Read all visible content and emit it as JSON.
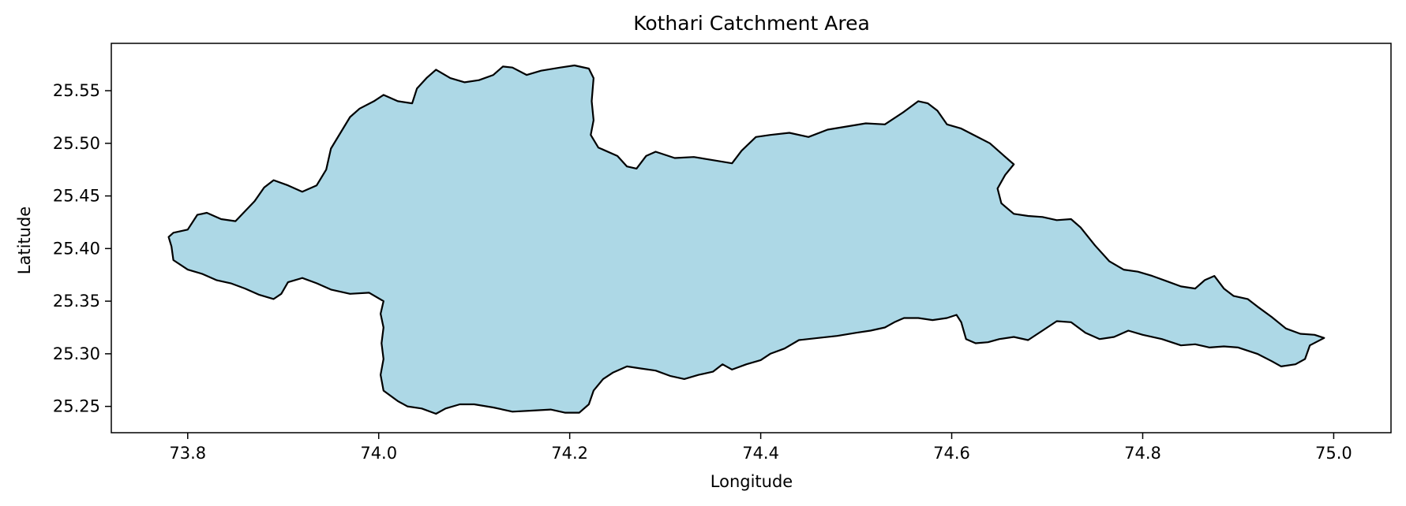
{
  "chart_data": {
    "type": "map",
    "title": "Kothari Catchment Area",
    "xlabel": "Longitude",
    "ylabel": "Latitude",
    "xlim": [
      73.72,
      75.06
    ],
    "ylim": [
      25.225,
      25.595
    ],
    "x_ticks": [
      73.8,
      74.0,
      74.2,
      74.4,
      74.6,
      74.8,
      75.0
    ],
    "x_tick_labels": [
      "73.8",
      "74.0",
      "74.2",
      "74.4",
      "74.6",
      "74.8",
      "75.0"
    ],
    "y_ticks": [
      25.25,
      25.3,
      25.35,
      25.4,
      25.45,
      25.5,
      25.55
    ],
    "y_tick_labels": [
      "25.25",
      "25.30",
      "25.35",
      "25.40",
      "25.45",
      "25.50",
      "25.55"
    ],
    "grid": false,
    "fill_color": "#add8e6",
    "edge_color": "#000000",
    "boundary": [
      [
        73.78,
        25.411
      ],
      [
        73.785,
        25.415
      ],
      [
        73.8,
        25.418
      ],
      [
        73.81,
        25.432
      ],
      [
        73.82,
        25.434
      ],
      [
        73.835,
        25.428
      ],
      [
        73.85,
        25.426
      ],
      [
        73.87,
        25.445
      ],
      [
        73.88,
        25.458
      ],
      [
        73.89,
        25.465
      ],
      [
        73.905,
        25.46
      ],
      [
        73.92,
        25.454
      ],
      [
        73.935,
        25.46
      ],
      [
        73.945,
        25.475
      ],
      [
        73.95,
        25.495
      ],
      [
        73.96,
        25.51
      ],
      [
        73.97,
        25.525
      ],
      [
        73.98,
        25.533
      ],
      [
        73.995,
        25.54
      ],
      [
        74.005,
        25.546
      ],
      [
        74.02,
        25.54
      ],
      [
        74.035,
        25.538
      ],
      [
        74.04,
        25.552
      ],
      [
        74.05,
        25.562
      ],
      [
        74.06,
        25.57
      ],
      [
        74.075,
        25.562
      ],
      [
        74.09,
        25.558
      ],
      [
        74.105,
        25.56
      ],
      [
        74.12,
        25.565
      ],
      [
        74.13,
        25.573
      ],
      [
        74.14,
        25.572
      ],
      [
        74.155,
        25.565
      ],
      [
        74.17,
        25.569
      ],
      [
        74.19,
        25.572
      ],
      [
        74.205,
        25.574
      ],
      [
        74.22,
        25.571
      ],
      [
        74.225,
        25.562
      ],
      [
        74.223,
        25.54
      ],
      [
        74.225,
        25.522
      ],
      [
        74.222,
        25.508
      ],
      [
        74.23,
        25.496
      ],
      [
        74.25,
        25.488
      ],
      [
        74.26,
        25.478
      ],
      [
        74.27,
        25.476
      ],
      [
        74.28,
        25.488
      ],
      [
        74.29,
        25.492
      ],
      [
        74.31,
        25.486
      ],
      [
        74.33,
        25.487
      ],
      [
        74.35,
        25.484
      ],
      [
        74.37,
        25.481
      ],
      [
        74.38,
        25.493
      ],
      [
        74.395,
        25.506
      ],
      [
        74.41,
        25.508
      ],
      [
        74.43,
        25.51
      ],
      [
        74.45,
        25.506
      ],
      [
        74.47,
        25.513
      ],
      [
        74.49,
        25.516
      ],
      [
        74.51,
        25.519
      ],
      [
        74.53,
        25.518
      ],
      [
        74.55,
        25.53
      ],
      [
        74.565,
        25.54
      ],
      [
        74.575,
        25.538
      ],
      [
        74.585,
        25.531
      ],
      [
        74.595,
        25.518
      ],
      [
        74.61,
        25.514
      ],
      [
        74.625,
        25.507
      ],
      [
        74.64,
        25.5
      ],
      [
        74.655,
        25.488
      ],
      [
        74.665,
        25.48
      ],
      [
        74.656,
        25.47
      ],
      [
        74.648,
        25.457
      ],
      [
        74.652,
        25.443
      ],
      [
        74.665,
        25.433
      ],
      [
        74.68,
        25.431
      ],
      [
        74.695,
        25.43
      ],
      [
        74.71,
        25.427
      ],
      [
        74.725,
        25.428
      ],
      [
        74.735,
        25.42
      ],
      [
        74.75,
        25.403
      ],
      [
        74.765,
        25.388
      ],
      [
        74.78,
        25.38
      ],
      [
        74.795,
        25.378
      ],
      [
        74.81,
        25.374
      ],
      [
        74.825,
        25.369
      ],
      [
        74.84,
        25.364
      ],
      [
        74.855,
        25.362
      ],
      [
        74.865,
        25.37
      ],
      [
        74.875,
        25.374
      ],
      [
        74.885,
        25.362
      ],
      [
        74.895,
        25.355
      ],
      [
        74.91,
        25.352
      ],
      [
        74.92,
        25.345
      ],
      [
        74.935,
        25.335
      ],
      [
        74.95,
        25.324
      ],
      [
        74.965,
        25.319
      ],
      [
        74.98,
        25.318
      ],
      [
        74.99,
        25.315
      ],
      [
        74.975,
        25.308
      ],
      [
        74.97,
        25.295
      ],
      [
        74.96,
        25.29
      ],
      [
        74.945,
        25.288
      ],
      [
        74.935,
        25.293
      ],
      [
        74.92,
        25.3
      ],
      [
        74.9,
        25.306
      ],
      [
        74.885,
        25.307
      ],
      [
        74.87,
        25.306
      ],
      [
        74.855,
        25.309
      ],
      [
        74.84,
        25.308
      ],
      [
        74.82,
        25.314
      ],
      [
        74.8,
        25.318
      ],
      [
        74.785,
        25.322
      ],
      [
        74.77,
        25.316
      ],
      [
        74.755,
        25.314
      ],
      [
        74.74,
        25.32
      ],
      [
        74.725,
        25.33
      ],
      [
        74.71,
        25.331
      ],
      [
        74.695,
        25.322
      ],
      [
        74.68,
        25.313
      ],
      [
        74.665,
        25.316
      ],
      [
        74.65,
        25.314
      ],
      [
        74.638,
        25.311
      ],
      [
        74.625,
        25.31
      ],
      [
        74.615,
        25.314
      ],
      [
        74.61,
        25.33
      ],
      [
        74.605,
        25.337
      ],
      [
        74.595,
        25.334
      ],
      [
        74.58,
        25.332
      ],
      [
        74.565,
        25.334
      ],
      [
        74.55,
        25.334
      ],
      [
        74.54,
        25.33
      ],
      [
        74.53,
        25.325
      ],
      [
        74.515,
        25.322
      ],
      [
        74.5,
        25.32
      ],
      [
        74.48,
        25.317
      ],
      [
        74.46,
        25.315
      ],
      [
        74.44,
        25.313
      ],
      [
        74.425,
        25.305
      ],
      [
        74.41,
        25.3
      ],
      [
        74.4,
        25.294
      ],
      [
        74.385,
        25.29
      ],
      [
        74.37,
        25.285
      ],
      [
        74.36,
        25.29
      ],
      [
        74.35,
        25.283
      ],
      [
        74.335,
        25.28
      ],
      [
        74.32,
        25.276
      ],
      [
        74.305,
        25.279
      ],
      [
        74.29,
        25.284
      ],
      [
        74.275,
        25.286
      ],
      [
        74.26,
        25.288
      ],
      [
        74.245,
        25.282
      ],
      [
        74.235,
        25.276
      ],
      [
        74.225,
        25.265
      ],
      [
        74.22,
        25.252
      ],
      [
        74.21,
        25.244
      ],
      [
        74.195,
        25.244
      ],
      [
        74.18,
        25.247
      ],
      [
        74.16,
        25.246
      ],
      [
        74.14,
        25.245
      ],
      [
        74.12,
        25.249
      ],
      [
        74.1,
        25.252
      ],
      [
        74.085,
        25.252
      ],
      [
        74.07,
        25.248
      ],
      [
        74.06,
        25.243
      ],
      [
        74.045,
        25.248
      ],
      [
        74.03,
        25.25
      ],
      [
        74.02,
        25.255
      ],
      [
        74.005,
        25.265
      ],
      [
        74.002,
        25.28
      ],
      [
        74.005,
        25.295
      ],
      [
        74.003,
        25.31
      ],
      [
        74.005,
        25.325
      ],
      [
        74.002,
        25.338
      ],
      [
        74.005,
        25.35
      ],
      [
        73.99,
        25.358
      ],
      [
        73.97,
        25.357
      ],
      [
        73.95,
        25.361
      ],
      [
        73.935,
        25.367
      ],
      [
        73.92,
        25.372
      ],
      [
        73.905,
        25.368
      ],
      [
        73.898,
        25.357
      ],
      [
        73.89,
        25.352
      ],
      [
        73.875,
        25.356
      ],
      [
        73.86,
        25.362
      ],
      [
        73.845,
        25.367
      ],
      [
        73.83,
        25.37
      ],
      [
        73.815,
        25.376
      ],
      [
        73.8,
        25.38
      ],
      [
        73.785,
        25.389
      ],
      [
        73.783,
        25.402
      ],
      [
        73.78,
        25.411
      ]
    ]
  }
}
